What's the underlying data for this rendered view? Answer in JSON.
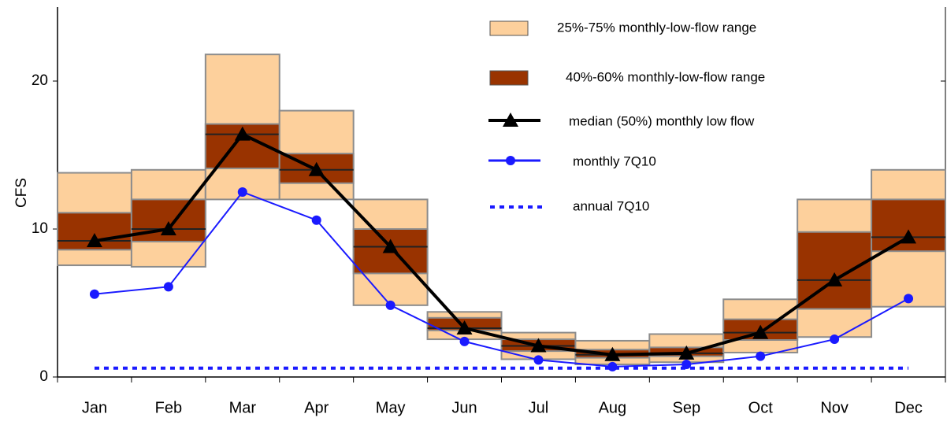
{
  "chart_data": {
    "type": "range-box",
    "y_label": "CFS",
    "categories": [
      "Jan",
      "Feb",
      "Mar",
      "Apr",
      "May",
      "Jun",
      "Jul",
      "Aug",
      "Sep",
      "Oct",
      "Nov",
      "Dec"
    ],
    "ylim": [
      0,
      25
    ],
    "yticks": [
      0,
      10,
      20
    ],
    "ranges": [
      {
        "name": "25%-75% monthly-low-flow range",
        "color": "#fdd09c",
        "low": [
          7.55,
          7.45,
          12.0,
          12.0,
          4.85,
          2.55,
          1.2,
          0.85,
          1.0,
          1.65,
          2.7,
          4.75
        ],
        "high": [
          13.8,
          14.0,
          21.8,
          18.0,
          12.0,
          4.4,
          3.0,
          2.45,
          2.9,
          5.25,
          12.0,
          14.0
        ]
      },
      {
        "name": "40%-60% monthly-low-flow range",
        "color": "#993300",
        "low": [
          8.6,
          9.15,
          14.1,
          13.1,
          7.0,
          3.15,
          1.75,
          1.3,
          1.4,
          2.5,
          4.6,
          8.5
        ],
        "high": [
          11.1,
          12.0,
          17.1,
          15.1,
          10.0,
          4.0,
          2.55,
          1.85,
          2.0,
          3.9,
          9.8,
          12.0
        ]
      }
    ],
    "series": [
      {
        "name": "median (50%) monthly low flow",
        "color": "#000000",
        "marker": "triangle",
        "values": [
          9.2,
          10.0,
          16.4,
          14.0,
          8.8,
          3.3,
          2.1,
          1.5,
          1.6,
          3.0,
          6.55,
          9.45
        ]
      },
      {
        "name": "monthly 7Q10",
        "color": "#1a1aff",
        "marker": "circle",
        "values": [
          5.6,
          6.1,
          12.5,
          10.6,
          4.85,
          2.4,
          1.15,
          0.7,
          0.85,
          1.4,
          2.55,
          5.3
        ]
      }
    ],
    "annual": {
      "name": "annual 7Q10",
      "color": "#1a1aff",
      "value": 0.6
    }
  }
}
